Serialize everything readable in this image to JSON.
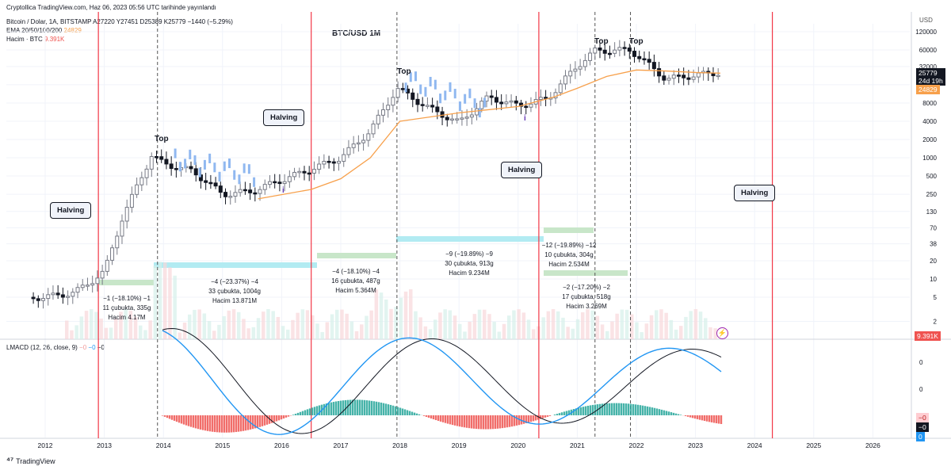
{
  "publish_line": "Cryptollica TradingView.com, Haz 06, 2023 05:56 UTC tarihinde yayınlandı",
  "symbol_line": "Bitcoin / Dolar, 1A, BITSTAMP  A27220  Y27451  D25389  K25779  −1440 (−5.29%)",
  "ema_label": "EMA 20/50/100/200",
  "ema_value": "24829",
  "volume_label": "Hacim · BTC",
  "volume_value": "9.391K",
  "chart_title": "BTC/USD 1M",
  "currency_label": "USD",
  "lmacd_label": "LMACD (12, 26, close, 9)",
  "lmacd_values": [
    "−0",
    "−0",
    "−0"
  ],
  "logo_text": "TradingView",
  "price_badges": {
    "last": "25779",
    "countdown": "24d 19h",
    "ema": "24829",
    "volume": "9.391K",
    "macd_badges": [
      "−0",
      "−0",
      "0"
    ]
  },
  "colors": {
    "up": "#26a69a",
    "down": "#131722",
    "candle_up": "#787b86",
    "ghost": "#90b8f0",
    "ema": "#f7a04b",
    "halving": "#f23645",
    "macd": "#2196f3",
    "signal": "#131722",
    "hist_pos": "#26a69a",
    "hist_neg": "#ef5350",
    "range_green": "#c8e6c9",
    "range_blue": "#b2ebf2"
  },
  "callouts": [
    {
      "label": "Halving"
    },
    {
      "label": "Halving"
    },
    {
      "label": "Halving"
    },
    {
      "label": "Halving"
    }
  ],
  "tops": [
    {
      "label": "Top"
    },
    {
      "label": "Top"
    },
    {
      "label": "Top"
    },
    {
      "label": "Top"
    }
  ],
  "stats": [
    {
      "line1": "−1 (−18.10%) −1",
      "line2": "11 çubukta, 335g",
      "line3": "Hacim 4.17M"
    },
    {
      "line1": "−4 (−23.37%) −4",
      "line2": "33 çubukta, 1004g",
      "line3": "Hacim 13.871M"
    },
    {
      "line1": "−4 (−18.10%) −4",
      "line2": "16 çubukta, 487g",
      "line3": "Hacim 5.364M"
    },
    {
      "line1": "−9 (−19.89%) −9",
      "line2": "30 çubukta, 913g",
      "line3": "Hacim 9.234M"
    },
    {
      "line1": "−12 (−19.89%) −12",
      "line2": "10 çubukta, 304g",
      "line3": "Hacim 2.534M"
    },
    {
      "line1": "−2 (−17.20%) −2",
      "line2": "17 çubukta, 518g",
      "line3": "Hacim 3.269M"
    }
  ],
  "chart_data": {
    "type": "candlestick",
    "title": "BTC/USD 1M",
    "y_scale": "log",
    "y_ticks": [
      "120000",
      "60000",
      "32000",
      "16000",
      "8000",
      "4000",
      "2000",
      "1000",
      "500",
      "250",
      "130",
      "70",
      "38",
      "20",
      "10",
      "5",
      "2"
    ],
    "x_ticks": [
      "2012",
      "2013",
      "2014",
      "2015",
      "2016",
      "2017",
      "2018",
      "2019",
      "2020",
      "2021",
      "2022",
      "2023",
      "2024",
      "2025",
      "2026"
    ],
    "macd_ticks": [
      "0",
      "0"
    ],
    "series": [
      {
        "name": "Bitcoin / Dolar",
        "x": [
          2012.0,
          2012.5,
          2013.0,
          2013.3,
          2013.8,
          2014.0,
          2014.5,
          2015.0,
          2015.5,
          2016.0,
          2016.5,
          2017.0,
          2017.5,
          2017.95,
          2018.5,
          2019.0,
          2019.5,
          2020.0,
          2020.5,
          2021.0,
          2021.3,
          2021.9,
          2022.5,
          2023.0,
          2023.42
        ],
        "y": [
          5,
          6,
          13,
          100,
          1100,
          800,
          600,
          250,
          280,
          430,
          650,
          1000,
          2800,
          14000,
          6500,
          3800,
          10000,
          7200,
          9500,
          33000,
          58000,
          60000,
          20000,
          23000,
          25779
        ]
      },
      {
        "name": "EMA 20/50/100/200",
        "x": [
          2015.6,
          2016.5,
          2017.0,
          2017.5,
          2018.0,
          2019.0,
          2020.0,
          2020.6,
          2021.0,
          2021.5,
          2022.0,
          2022.5,
          2023.0,
          2023.42
        ],
        "y": [
          210,
          300,
          450,
          1000,
          4000,
          5500,
          7000,
          10000,
          14000,
          22000,
          28000,
          27000,
          25500,
          24829
        ]
      }
    ],
    "halvings": [
      2012.9,
      2016.5,
      2020.35,
      2024.3
    ],
    "tops": [
      2013.9,
      2017.95,
      2021.3,
      2021.9
    ]
  }
}
